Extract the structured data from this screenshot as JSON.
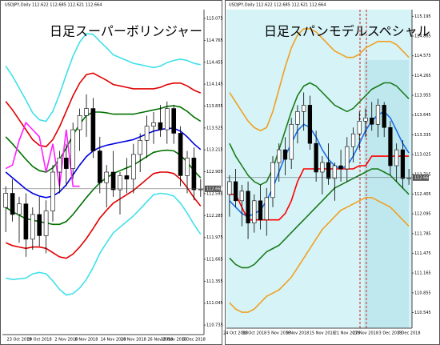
{
  "chart_data": [
    {
      "type": "candlestick",
      "symbol": "USDJPY,Daily 112.622 112.685 112.621 112.664",
      "title": "日足スーパーボリンジャー",
      "categories": [
        null,
        null,
        "23 Oct 2018",
        null,
        null,
        "29 Oct 2018",
        null,
        null,
        null,
        "2 Nov 2018",
        null,
        null,
        "8 Nov 2018",
        null,
        null,
        null,
        "14 Nov 2018",
        null,
        null,
        "20 Nov 2018",
        null,
        null,
        null,
        "26 Nov 2018",
        null,
        "30 Nov 2018",
        null,
        null,
        "6 Dec 2018",
        null
      ],
      "open": [
        112.4,
        112.6,
        112.3,
        112.45,
        111.95,
        112.3,
        112.0,
        112.35,
        112.9,
        113.1,
        112.95,
        113.5,
        113.7,
        113.8,
        113.2,
        112.75,
        112.9,
        112.65,
        112.85,
        112.8,
        113.15,
        113.35,
        113.55,
        113.6,
        113.5,
        113.8,
        113.45,
        112.85,
        113.1,
        112.65
      ],
      "high": [
        112.7,
        112.8,
        112.55,
        112.6,
        112.4,
        112.55,
        112.5,
        113.0,
        113.2,
        113.3,
        113.6,
        113.8,
        114.0,
        113.95,
        113.4,
        113.0,
        113.2,
        112.9,
        113.1,
        113.3,
        113.45,
        113.7,
        113.75,
        113.85,
        113.9,
        113.85,
        113.55,
        113.2,
        113.25,
        112.8
      ],
      "low": [
        112.05,
        112.2,
        111.9,
        111.7,
        111.8,
        111.85,
        111.75,
        112.2,
        112.6,
        112.7,
        112.8,
        113.2,
        113.4,
        113.1,
        112.6,
        112.4,
        112.55,
        112.3,
        112.6,
        112.6,
        112.9,
        113.1,
        113.3,
        113.4,
        113.3,
        113.3,
        112.7,
        112.6,
        112.5,
        112.55
      ],
      "close": [
        112.6,
        112.3,
        112.45,
        111.95,
        112.3,
        112.0,
        112.35,
        112.9,
        113.1,
        112.95,
        113.5,
        113.7,
        113.8,
        113.2,
        112.75,
        112.9,
        112.65,
        112.85,
        112.8,
        113.15,
        113.35,
        113.55,
        113.6,
        113.5,
        113.8,
        113.45,
        112.85,
        113.1,
        112.65,
        112.66
      ],
      "series": [
        {
          "color": "#40e0ea",
          "values": [
            114.4,
            114.26,
            114.09,
            113.92,
            113.74,
            113.64,
            113.62,
            113.76,
            114.0,
            114.28,
            114.54,
            114.74,
            114.86,
            114.85,
            114.75,
            114.66,
            114.56,
            114.52,
            114.48,
            114.44,
            114.42,
            114.4,
            114.38,
            114.4,
            114.45,
            114.48,
            114.5,
            114.48,
            114.44,
            114.42
          ]
        },
        {
          "color": "#e00000",
          "values": [
            113.9,
            113.78,
            113.64,
            113.5,
            113.36,
            113.28,
            113.26,
            113.36,
            113.54,
            113.76,
            113.98,
            114.16,
            114.28,
            114.3,
            114.25,
            114.2,
            114.14,
            114.12,
            114.1,
            114.08,
            114.08,
            114.08,
            114.08,
            114.1,
            114.14,
            114.16,
            114.16,
            114.12,
            114.06,
            114.02
          ]
        },
        {
          "color": "#007000",
          "values": [
            113.4,
            113.3,
            113.19,
            113.08,
            112.98,
            112.92,
            112.9,
            112.96,
            113.08,
            113.24,
            113.42,
            113.58,
            113.7,
            113.75,
            113.75,
            113.74,
            113.72,
            113.72,
            113.72,
            113.72,
            113.74,
            113.76,
            113.78,
            113.8,
            113.83,
            113.84,
            113.82,
            113.76,
            113.68,
            113.62
          ]
        },
        {
          "color": "#0000e0",
          "values": [
            112.9,
            112.82,
            112.74,
            112.66,
            112.6,
            112.56,
            112.54,
            112.56,
            112.62,
            112.72,
            112.86,
            113.0,
            113.12,
            113.2,
            113.25,
            113.28,
            113.3,
            113.32,
            113.34,
            113.36,
            113.4,
            113.44,
            113.48,
            113.5,
            113.52,
            113.52,
            113.48,
            113.4,
            113.3,
            113.22
          ]
        },
        {
          "color": "#007000",
          "values": [
            112.4,
            112.34,
            112.29,
            112.24,
            112.22,
            112.2,
            112.18,
            112.16,
            112.16,
            112.2,
            112.3,
            112.42,
            112.54,
            112.65,
            112.75,
            112.82,
            112.88,
            112.92,
            112.96,
            113.0,
            113.06,
            113.12,
            113.18,
            113.2,
            113.21,
            113.2,
            113.14,
            113.04,
            112.92,
            112.82
          ]
        },
        {
          "color": "#e00000",
          "values": [
            111.9,
            111.86,
            111.84,
            111.82,
            111.84,
            111.84,
            111.82,
            111.76,
            111.7,
            111.68,
            111.74,
            111.84,
            111.96,
            112.1,
            112.25,
            112.36,
            112.46,
            112.52,
            112.58,
            112.64,
            112.72,
            112.8,
            112.88,
            112.9,
            112.9,
            112.88,
            112.8,
            112.68,
            112.54,
            112.42
          ]
        },
        {
          "color": "#40e0ea",
          "values": [
            111.4,
            111.38,
            111.39,
            111.4,
            111.46,
            111.48,
            111.46,
            111.36,
            111.24,
            111.16,
            111.18,
            111.26,
            111.38,
            111.55,
            111.75,
            111.9,
            112.04,
            112.12,
            112.2,
            112.28,
            112.38,
            112.48,
            112.58,
            112.6,
            112.59,
            112.56,
            112.46,
            112.32,
            112.16,
            112.02
          ]
        },
        {
          "color": "#ff20ff",
          "values": [
            112.95,
            113.0,
            113.35,
            113.6,
            113.5,
            113.4,
            112.9,
            113.3,
            112.7,
            113.5,
            112.7,
            112.7,
            null,
            null,
            null,
            null,
            null,
            null,
            null,
            null,
            null,
            null,
            null,
            null,
            null,
            null,
            null,
            null,
            null,
            null
          ]
        }
      ],
      "last": 112.664,
      "ylim": [
        110.6,
        115.2
      ],
      "yticks": [
        110.735,
        111.045,
        111.355,
        111.665,
        111.975,
        112.285,
        112.595,
        112.905,
        113.215,
        113.525,
        113.835,
        114.145,
        114.455,
        114.765,
        115.075
      ]
    },
    {
      "type": "candlestick",
      "symbol": "USDJPY,Daily 112.622 112.685 112.621 112.664",
      "title": "日足スパンモデルスペシャル",
      "categories": [
        null,
        "24 Oct 2018",
        null,
        null,
        "30 Oct 2018",
        null,
        null,
        null,
        "5 Nov 2018",
        null,
        null,
        "9 Nov 2018",
        null,
        null,
        null,
        "15 Nov 2018",
        null,
        null,
        null,
        "21 Nov 2018",
        null,
        null,
        "27 Nov 2018",
        null,
        null,
        null,
        "3 Dec 2018",
        null,
        null,
        "7 Dec 2018"
      ],
      "open": [
        112.4,
        112.6,
        112.3,
        112.45,
        111.95,
        112.3,
        112.0,
        112.35,
        112.9,
        113.1,
        112.95,
        113.5,
        113.7,
        113.8,
        113.2,
        112.75,
        112.9,
        112.65,
        112.85,
        112.8,
        113.15,
        113.35,
        113.55,
        113.6,
        113.5,
        113.8,
        113.45,
        112.85,
        113.1,
        112.65
      ],
      "high": [
        112.7,
        112.8,
        112.55,
        112.6,
        112.4,
        112.55,
        112.5,
        113.0,
        113.2,
        113.3,
        113.6,
        113.8,
        114.0,
        113.95,
        113.4,
        113.0,
        113.2,
        112.9,
        113.1,
        113.3,
        113.45,
        113.7,
        113.75,
        113.85,
        113.9,
        113.85,
        113.55,
        113.2,
        113.25,
        112.8
      ],
      "low": [
        112.05,
        112.2,
        111.9,
        111.7,
        111.8,
        111.85,
        111.75,
        112.2,
        112.6,
        112.7,
        112.8,
        113.2,
        113.4,
        113.1,
        112.6,
        112.4,
        112.55,
        112.3,
        112.6,
        112.6,
        112.9,
        113.1,
        113.3,
        113.4,
        113.3,
        113.3,
        112.7,
        112.6,
        112.5,
        112.55
      ],
      "close": [
        112.6,
        112.3,
        112.45,
        111.95,
        112.3,
        112.0,
        112.35,
        112.9,
        113.1,
        112.95,
        113.5,
        113.7,
        113.8,
        113.2,
        112.75,
        112.9,
        112.65,
        112.85,
        112.8,
        113.15,
        113.35,
        113.55,
        113.6,
        113.5,
        113.8,
        113.45,
        112.85,
        113.1,
        112.65,
        112.66
      ],
      "series": [
        {
          "color": "#f0a020",
          "values": [
            114.0,
            113.85,
            113.7,
            113.55,
            113.45,
            113.4,
            113.45,
            113.7,
            114.05,
            114.4,
            114.7,
            114.9,
            115.0,
            115.0,
            114.95,
            114.85,
            114.75,
            114.65,
            114.6,
            114.55,
            114.55,
            114.6,
            114.7,
            114.75,
            114.8,
            114.8,
            114.8,
            114.75,
            114.65,
            114.55
          ]
        },
        {
          "color": "#1a7a1a",
          "values": [
            113.2,
            113.0,
            112.85,
            112.7,
            112.6,
            112.55,
            112.6,
            112.8,
            113.1,
            113.4,
            113.7,
            113.95,
            114.1,
            114.15,
            114.1,
            114.0,
            113.9,
            113.8,
            113.75,
            113.7,
            113.75,
            113.85,
            113.95,
            114.05,
            114.1,
            114.15,
            114.15,
            114.1,
            114.0,
            113.9
          ]
        },
        {
          "color": "#1a6ee8",
          "values": [
            112.3,
            112.2,
            112.1,
            112.05,
            112.1,
            112.15,
            112.3,
            112.5,
            112.75,
            113.0,
            113.2,
            113.4,
            113.5,
            113.45,
            113.3,
            113.1,
            112.95,
            112.85,
            112.8,
            112.85,
            113.0,
            113.2,
            113.4,
            113.55,
            113.65,
            113.7,
            113.6,
            113.4,
            113.2,
            113.05
          ]
        },
        {
          "color": "#ff0000",
          "values": [
            112.4,
            112.4,
            112.2,
            112.0,
            112.0,
            112.0,
            112.0,
            112.0,
            112.0,
            112.1,
            112.3,
            112.6,
            112.8,
            112.8,
            112.8,
            112.8,
            112.8,
            112.8,
            112.8,
            112.8,
            112.8,
            112.85,
            112.85,
            113.0,
            113.0,
            113.0,
            113.0,
            113.0,
            113.0,
            113.0
          ]
        },
        {
          "color": "#1a7a1a",
          "values": [
            111.4,
            111.3,
            111.25,
            111.25,
            111.3,
            111.4,
            111.5,
            111.55,
            111.6,
            111.7,
            111.8,
            111.9,
            112.0,
            112.1,
            112.2,
            112.3,
            112.4,
            112.5,
            112.55,
            112.6,
            112.65,
            112.7,
            112.75,
            112.8,
            112.8,
            112.75,
            112.7,
            112.6,
            112.5,
            112.4
          ]
        },
        {
          "color": "#f0a020",
          "values": [
            110.7,
            110.6,
            110.55,
            110.55,
            110.6,
            110.7,
            110.8,
            110.85,
            110.9,
            111.0,
            111.1,
            111.25,
            111.4,
            111.55,
            111.7,
            111.85,
            111.95,
            112.05,
            112.15,
            112.2,
            112.25,
            112.3,
            112.35,
            112.35,
            112.3,
            112.25,
            112.2,
            112.1,
            112.0,
            111.9
          ]
        }
      ],
      "last": 112.664,
      "ylim": [
        110.3,
        115.3
      ],
      "yticks": [
        110.545,
        110.855,
        111.165,
        111.475,
        111.785,
        112.095,
        112.405,
        112.715,
        113.025,
        113.335,
        113.645,
        113.955,
        114.265,
        114.575,
        114.885,
        115.195
      ]
    }
  ]
}
